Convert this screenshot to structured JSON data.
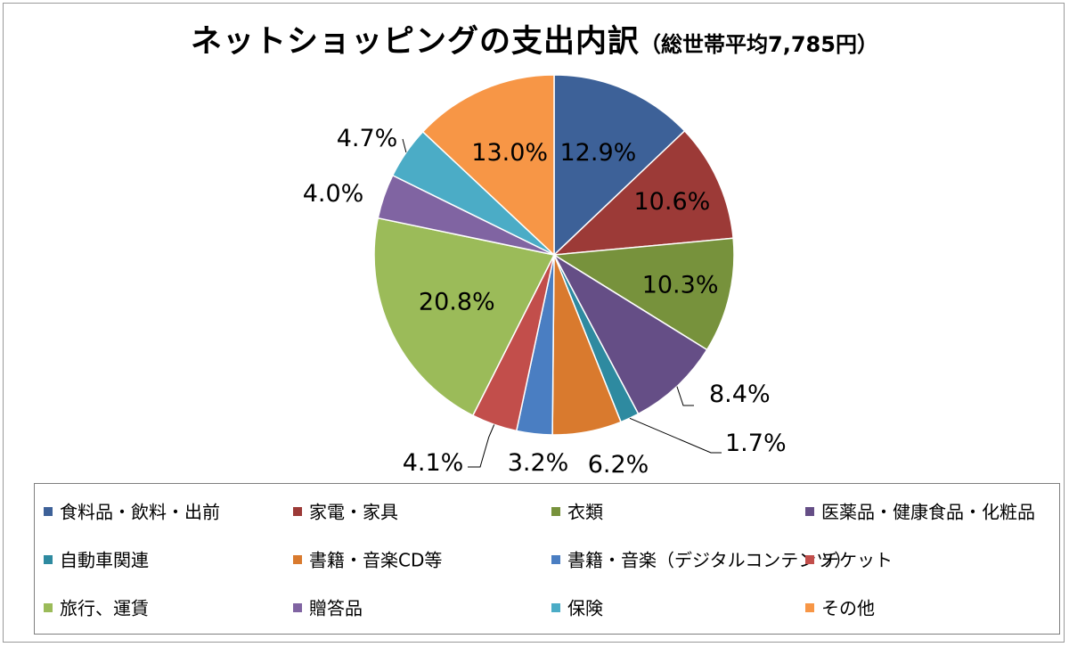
{
  "title": "ネットショッピングの支出内訳",
  "subtitle": "（総世帯平均7,785円）",
  "chart_data": {
    "type": "pie",
    "title": "ネットショッピングの支出内訳（総世帯平均7,785円）",
    "legend_position": "bottom",
    "slices": [
      {
        "label": "食料品・飲料・出前",
        "value": 12.9,
        "display": "12.9%",
        "color": "#3D6198"
      },
      {
        "label": "家電・家具",
        "value": 10.6,
        "display": "10.6%",
        "color": "#9C3A37"
      },
      {
        "label": "衣類",
        "value": 10.3,
        "display": "10.3%",
        "color": "#77923C"
      },
      {
        "label": "医薬品・健康食品・化粧品",
        "value": 8.4,
        "display": "8.4%",
        "color": "#654E86"
      },
      {
        "label": "自動車関連",
        "value": 1.7,
        "display": "1.7%",
        "color": "#2E8AA0"
      },
      {
        "label": "書籍・音楽CD等",
        "value": 6.2,
        "display": "6.2%",
        "color": "#D97A2E"
      },
      {
        "label": "書籍・音楽（デジタルコンテンツ）",
        "value": 3.2,
        "display": "3.2%",
        "color": "#4A7EC2"
      },
      {
        "label": "チケット",
        "value": 4.1,
        "display": "4.1%",
        "color": "#C24E4B"
      },
      {
        "label": "旅行、運賃",
        "value": 20.8,
        "display": "20.8%",
        "color": "#9BBB59"
      },
      {
        "label": "贈答品",
        "value": 4.0,
        "display": "4.0%",
        "color": "#8064A2"
      },
      {
        "label": "保険",
        "value": 4.7,
        "display": "4.7%",
        "color": "#4BACC6"
      },
      {
        "label": "その他",
        "value": 13.0,
        "display": "13.0%",
        "color": "#F79646"
      }
    ]
  }
}
